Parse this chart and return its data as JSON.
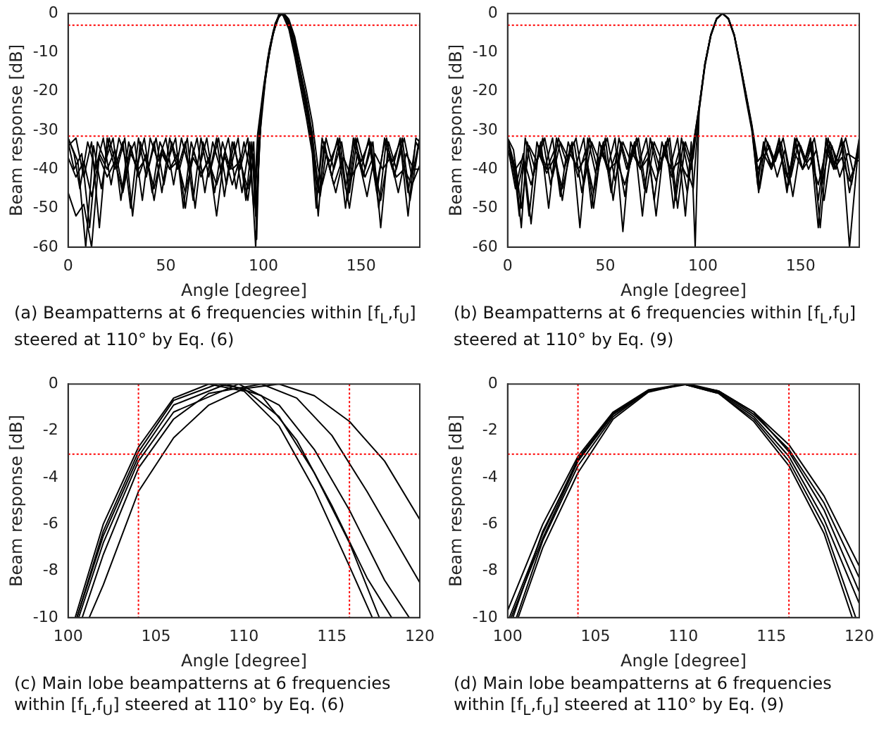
{
  "chart_data": [
    {
      "type": "line",
      "xlabel": "Angle [degree]",
      "ylabel": "Beam response [dB]",
      "xlim": [
        0,
        180
      ],
      "ylim": [
        -60,
        0
      ],
      "xticks": [
        0,
        50,
        100,
        150
      ],
      "yticks": [
        -60,
        -50,
        -40,
        -30,
        -20,
        -10,
        0
      ],
      "grid": false,
      "marker": "none",
      "line_style": "solid",
      "ref_lines": [
        {
          "axis": "y",
          "value": -3,
          "color": "#ff0000",
          "line_style": "dotted"
        },
        {
          "axis": "y",
          "value": -31.5,
          "color": "#ff0000",
          "line_style": "dotted"
        }
      ],
      "annotations": [
        "(a) Beampatterns at 6 frequencies within [f$_{L}$,f$_{U}$] steered at 110° by Eq. (6)"
      ],
      "series": [
        {
          "color": "#000000",
          "x": [
            0,
            3,
            6,
            10,
            14,
            18,
            22,
            26,
            30,
            34,
            38,
            42,
            46,
            50,
            54,
            58,
            62,
            66,
            70,
            74,
            78,
            82,
            86,
            90,
            93,
            95,
            96.5,
            98,
            100,
            103,
            106,
            108,
            110,
            113,
            116,
            119,
            122,
            125,
            127,
            130,
            134,
            138,
            142,
            146,
            150,
            154,
            158,
            162,
            166,
            170,
            174,
            178,
            180
          ],
          "values": [
            -32,
            -36,
            -45,
            -33,
            -40,
            -32,
            -44,
            -32,
            -38,
            -33,
            -48,
            -32,
            -38,
            -32,
            -44,
            -32,
            -40,
            -32,
            -46,
            -33,
            -40,
            -32,
            -45,
            -33,
            -40,
            -33,
            -58,
            -30,
            -20,
            -10,
            -3,
            0,
            -0.5,
            -4,
            -11,
            -19,
            -27,
            -36,
            -50,
            -32,
            -40,
            -32,
            -45,
            -33,
            -40,
            -32,
            -44,
            -33,
            -40,
            -32,
            -46,
            -33,
            -35
          ]
        },
        {
          "color": "#000000",
          "x": [
            0,
            4,
            8,
            12,
            16,
            20,
            24,
            28,
            32,
            36,
            40,
            44,
            48,
            52,
            56,
            60,
            64,
            68,
            72,
            76,
            80,
            84,
            88,
            92,
            95,
            97,
            100,
            103,
            106,
            108.5,
            111,
            114,
            117,
            120,
            123,
            126,
            128,
            131,
            135,
            139,
            143,
            147,
            151,
            155,
            159,
            163,
            167,
            171,
            175,
            180
          ],
          "values": [
            -34,
            -32,
            -42,
            -33,
            -55,
            -32,
            -40,
            -33,
            -50,
            -32,
            -42,
            -33,
            -46,
            -32,
            -40,
            -33,
            -48,
            -32,
            -42,
            -32,
            -47,
            -33,
            -40,
            -32,
            -50,
            -31,
            -19,
            -9,
            -2.5,
            0,
            -0.8,
            -5,
            -12,
            -20,
            -28,
            -38,
            -52,
            -33,
            -42,
            -32,
            -48,
            -32,
            -42,
            -33,
            -50,
            -32,
            -42,
            -32,
            -48,
            -32
          ]
        },
        {
          "color": "#000000",
          "x": [
            0,
            4,
            8,
            12,
            16,
            20,
            24,
            28,
            32,
            36,
            40,
            44,
            48,
            52,
            56,
            60,
            64,
            68,
            72,
            76,
            80,
            84,
            88,
            92,
            95,
            96,
            98,
            101,
            104,
            107,
            109,
            112,
            115,
            118,
            121,
            124,
            127,
            129,
            132,
            136,
            140,
            144,
            148,
            152,
            156,
            160,
            164,
            168,
            172,
            176,
            180
          ],
          "values": [
            -46,
            -52,
            -49,
            -60,
            -36,
            -40,
            -35,
            -45,
            -34,
            -42,
            -36,
            -48,
            -35,
            -40,
            -36,
            -50,
            -35,
            -42,
            -37,
            -52,
            -36,
            -44,
            -37,
            -48,
            -36,
            -45,
            -28,
            -16,
            -7,
            -1.5,
            0,
            -1.2,
            -6,
            -13,
            -21,
            -29,
            -40,
            -47,
            -36,
            -44,
            -38,
            -50,
            -36,
            -42,
            -37,
            -48,
            -36,
            -42,
            -40,
            -44,
            -39
          ]
        },
        {
          "color": "#000000",
          "x": [
            0,
            5,
            9,
            13,
            17,
            21,
            25,
            29,
            33,
            37,
            41,
            45,
            49,
            53,
            57,
            61,
            65,
            69,
            73,
            77,
            81,
            85,
            89,
            93,
            96,
            98,
            101,
            104,
            107,
            109.5,
            112,
            115,
            118,
            121,
            124,
            126.5,
            128.5,
            132,
            136,
            140,
            144,
            148,
            152,
            156,
            160,
            164,
            168,
            172,
            176,
            180
          ],
          "values": [
            -32,
            -38,
            -60,
            -34,
            -45,
            -32,
            -40,
            -32,
            -52,
            -33,
            -40,
            -32,
            -44,
            -33,
            -40,
            -32,
            -50,
            -33,
            -40,
            -32,
            -44,
            -33,
            -46,
            -33,
            -60,
            -32,
            -17,
            -7,
            -1.5,
            0,
            -1,
            -5.5,
            -13,
            -21,
            -30,
            -42,
            -46,
            -32,
            -40,
            -33,
            -46,
            -32,
            -40,
            -33,
            -55,
            -33,
            -40,
            -32,
            -42,
            -32
          ]
        },
        {
          "color": "#000000",
          "x": [
            0,
            3,
            7,
            11,
            15,
            19,
            23,
            27,
            31,
            35,
            39,
            43,
            47,
            51,
            55,
            59,
            63,
            67,
            71,
            75,
            79,
            83,
            87,
            91,
            94,
            96,
            99,
            102,
            105,
            108,
            110,
            113,
            116,
            119,
            122,
            125,
            128,
            130,
            134,
            138,
            142,
            146,
            150,
            154,
            158,
            162,
            166,
            170,
            174,
            178,
            180
          ],
          "values": [
            -33,
            -40,
            -36,
            -55,
            -33,
            -38,
            -32,
            -48,
            -33,
            -40,
            -32,
            -46,
            -33,
            -38,
            -32,
            -50,
            -33,
            -40,
            -32,
            -46,
            -33,
            -40,
            -32,
            -48,
            -33,
            -52,
            -25,
            -13,
            -5,
            -0.7,
            0,
            -2,
            -7,
            -15,
            -22,
            -31,
            -45,
            -34,
            -38,
            -33,
            -50,
            -32,
            -38,
            -33,
            -46,
            -32,
            -38,
            -33,
            -52,
            -32,
            -33
          ]
        },
        {
          "color": "#000000",
          "x": [
            0,
            4,
            8,
            12,
            16,
            20,
            24,
            28,
            32,
            36,
            40,
            44,
            48,
            52,
            56,
            60,
            64,
            68,
            72,
            76,
            80,
            84,
            88,
            92,
            95,
            96.5,
            99,
            102,
            105,
            108,
            110.5,
            113,
            116,
            119,
            122,
            125,
            128,
            130,
            133,
            137,
            141,
            145,
            149,
            153,
            157,
            161,
            165,
            169,
            173,
            177,
            180
          ],
          "values": [
            -37,
            -42,
            -38,
            -47,
            -37,
            -42,
            -38,
            -46,
            -36,
            -40,
            -37,
            -45,
            -36,
            -40,
            -38,
            -46,
            -37,
            -41,
            -38,
            -44,
            -37,
            -40,
            -38,
            -45,
            -37,
            -50,
            -24,
            -12,
            -4.5,
            -0.5,
            0,
            -1.5,
            -6,
            -13,
            -20,
            -28,
            -40,
            -44,
            -38,
            -46,
            -37,
            -42,
            -38,
            -47,
            -36,
            -40,
            -37,
            -46,
            -36,
            -40,
            -40
          ]
        }
      ]
    },
    {
      "type": "line",
      "xlabel": "Angle [degree]",
      "ylabel": "Beam response [dB]",
      "xlim": [
        0,
        180
      ],
      "ylim": [
        -60,
        0
      ],
      "xticks": [
        0,
        50,
        100,
        150
      ],
      "yticks": [
        -60,
        -50,
        -40,
        -30,
        -20,
        -10,
        0
      ],
      "grid": false,
      "marker": "none",
      "line_style": "solid",
      "ref_lines": [
        {
          "axis": "y",
          "value": -3,
          "color": "#ff0000",
          "line_style": "dotted"
        },
        {
          "axis": "y",
          "value": -31.5,
          "color": "#ff0000",
          "line_style": "dotted"
        }
      ],
      "annotations": [
        "(b) Beampatterns at 6 frequencies within [f$_{L}$,f$_{U}$] steered at 110° by Eq. (9)"
      ],
      "series": [
        {
          "color": "#000000",
          "x": [
            0,
            4,
            7,
            10,
            14,
            18,
            22,
            26,
            30,
            34,
            38,
            42,
            46,
            50,
            54,
            58,
            62,
            66,
            70,
            74,
            78,
            82,
            86,
            90,
            94,
            95.5,
            98,
            101,
            104,
            107,
            110,
            113,
            116,
            119,
            122,
            125,
            128,
            131,
            135,
            139,
            143,
            147,
            151,
            155,
            159,
            163,
            167,
            171,
            175,
            180
          ],
          "values": [
            -32,
            -40,
            -55,
            -33,
            -40,
            -32,
            -44,
            -32,
            -38,
            -33,
            -46,
            -32,
            -40,
            -32,
            -48,
            -33,
            -40,
            -32,
            -45,
            -33,
            -40,
            -32,
            -48,
            -33,
            -40,
            -32,
            -24,
            -13,
            -5.5,
            -1.3,
            0,
            -1.3,
            -5.5,
            -13,
            -21,
            -29,
            -44,
            -33,
            -40,
            -32,
            -45,
            -33,
            -40,
            -32,
            -48,
            -33,
            -40,
            -32,
            -46,
            -33
          ]
        },
        {
          "color": "#000000",
          "x": [
            0,
            3,
            6,
            9,
            13,
            17,
            21,
            25,
            29,
            33,
            37,
            41,
            45,
            49,
            53,
            57,
            61,
            65,
            69,
            73,
            77,
            81,
            85,
            89,
            93,
            95,
            98,
            101,
            104,
            107,
            110,
            113,
            116,
            119,
            122,
            125,
            128.5,
            132,
            136,
            140,
            144,
            148,
            152,
            156,
            160,
            164,
            168,
            172,
            176,
            180
          ],
          "values": [
            -33,
            -38,
            -52,
            -32,
            -42,
            -33,
            -50,
            -32,
            -40,
            -33,
            -55,
            -32,
            -41,
            -33,
            -46,
            -32,
            -40,
            -33,
            -52,
            -32,
            -41,
            -33,
            -50,
            -32,
            -42,
            -45,
            -25,
            -13.5,
            -5.8,
            -1.4,
            0,
            -1.4,
            -5.8,
            -13.5,
            -22,
            -30,
            -46,
            -32,
            -38,
            -33,
            -44,
            -32,
            -38,
            -33,
            -55,
            -32,
            -40,
            -33,
            -44,
            -32
          ]
        },
        {
          "color": "#000000",
          "x": [
            0,
            4,
            8,
            12,
            16,
            20,
            24,
            28,
            32,
            36,
            40,
            44,
            48,
            52,
            56,
            60,
            64,
            68,
            72,
            76,
            80,
            84,
            88,
            92,
            95,
            98,
            101,
            104,
            107,
            110,
            113,
            116,
            119,
            122,
            125,
            128,
            130,
            134,
            138,
            142,
            146,
            150,
            154,
            158,
            162,
            166,
            170,
            174,
            180
          ],
          "values": [
            -34,
            -45,
            -36,
            -54,
            -34,
            -40,
            -35,
            -48,
            -34,
            -42,
            -35,
            -50,
            -34,
            -41,
            -35,
            -47,
            -34,
            -40,
            -35,
            -52,
            -34,
            -42,
            -35,
            -46,
            -34,
            -24,
            -13,
            -5.6,
            -1.3,
            0,
            -1.3,
            -5.6,
            -13,
            -21,
            -29,
            -40,
            -38,
            -34,
            -42,
            -35,
            -47,
            -34,
            -40,
            -35,
            -48,
            -34,
            -42,
            -36,
            -38
          ]
        },
        {
          "color": "#000000",
          "x": [
            0,
            5,
            8,
            11,
            15,
            19,
            23,
            27,
            31,
            35,
            39,
            43,
            47,
            51,
            55,
            59,
            63,
            67,
            71,
            75,
            79,
            83,
            87,
            91,
            94,
            96,
            98,
            101,
            104,
            107,
            110,
            113,
            116,
            119,
            122,
            125,
            128,
            131,
            135,
            139,
            143,
            147,
            151,
            155,
            159,
            163,
            167,
            171,
            175,
            180
          ],
          "values": [
            -32,
            -46,
            -38,
            -52,
            -33,
            -40,
            -32,
            -47,
            -33,
            -39,
            -32,
            -50,
            -33,
            -40,
            -32,
            -56,
            -33,
            -39,
            -32,
            -48,
            -33,
            -40,
            -32,
            -52,
            -33,
            -60,
            -25,
            -13.2,
            -5.6,
            -1.3,
            0,
            -1.3,
            -5.6,
            -13.2,
            -21,
            -29.5,
            -42,
            -34,
            -39,
            -33,
            -46,
            -32,
            -40,
            -33,
            -55,
            -32,
            -39,
            -33,
            -60,
            -32
          ]
        },
        {
          "color": "#000000",
          "x": [
            0,
            4,
            8,
            12,
            16,
            20,
            24,
            28,
            32,
            36,
            40,
            44,
            48,
            52,
            56,
            60,
            64,
            68,
            72,
            76,
            80,
            84,
            88,
            92,
            95,
            98,
            101,
            104,
            107,
            110,
            113,
            116,
            119,
            122,
            125,
            128,
            131,
            135,
            139,
            143,
            147,
            151,
            155,
            159,
            163,
            167,
            171,
            175,
            180
          ],
          "values": [
            -35,
            -40,
            -37,
            -44,
            -36,
            -41,
            -37,
            -45,
            -36,
            -40,
            -37,
            -46,
            -36,
            -40,
            -38,
            -44,
            -36,
            -40,
            -37,
            -43,
            -36,
            -40,
            -38,
            -42,
            -37,
            -24,
            -12.8,
            -5.4,
            -1.2,
            0,
            -1.2,
            -5.4,
            -12.8,
            -20.5,
            -28.5,
            -38,
            -36,
            -40,
            -35,
            -42,
            -36,
            -40,
            -37,
            -44,
            -35,
            -40,
            -37,
            -43,
            -36
          ]
        },
        {
          "color": "#000000",
          "x": [
            0,
            3,
            7,
            11,
            15,
            19,
            23,
            27,
            31,
            35,
            39,
            43,
            47,
            51,
            55,
            59,
            63,
            67,
            71,
            75,
            79,
            83,
            87,
            91,
            94,
            98,
            101,
            104,
            107,
            110,
            113,
            116,
            119,
            122,
            125,
            129,
            133,
            137,
            141,
            145,
            149,
            153,
            157,
            161,
            165,
            169,
            173,
            177,
            180
          ],
          "values": [
            -32,
            -35,
            -50,
            -34,
            -38,
            -32,
            -42,
            -33,
            -37,
            -32,
            -44,
            -33,
            -38,
            -32,
            -43,
            -33,
            -38,
            -32,
            -46,
            -33,
            -38,
            -32,
            -50,
            -33,
            -38,
            -24.5,
            -13,
            -5.5,
            -1.3,
            0,
            -1.3,
            -5.5,
            -13,
            -21,
            -29,
            -45,
            -33,
            -38,
            -32,
            -42,
            -33,
            -38,
            -32,
            -44,
            -33,
            -38,
            -32,
            -41,
            -34
          ]
        }
      ]
    },
    {
      "type": "line",
      "xlabel": "Angle [degree]",
      "ylabel": "Beam response [dB]",
      "xlim": [
        100,
        120
      ],
      "ylim": [
        -10,
        0
      ],
      "xticks": [
        100,
        105,
        110,
        115,
        120
      ],
      "yticks": [
        -10,
        -8,
        -6,
        -4,
        -2,
        0
      ],
      "grid": false,
      "marker": "none",
      "line_style": "solid",
      "ref_lines": [
        {
          "axis": "y",
          "value": -3,
          "color": "#ff0000",
          "line_style": "dotted"
        },
        {
          "axis": "x",
          "value": 104,
          "color": "#ff0000",
          "line_style": "dotted"
        },
        {
          "axis": "x",
          "value": 116,
          "color": "#ff0000",
          "line_style": "dotted"
        }
      ],
      "annotations": [
        "(c) Main lobe beampatterns at 6 frequencies within [f$_{L}$,f$_{U}$] steered at 110° by Eq. (6)"
      ],
      "series": [
        {
          "color": "#000000",
          "x": [
            100.4,
            102,
            104,
            106,
            108,
            110,
            112,
            114,
            116,
            117.3
          ],
          "values": [
            -10,
            -6,
            -2.7,
            -0.6,
            0,
            -0.3,
            -1.8,
            -4.5,
            -7.8,
            -10
          ]
        },
        {
          "color": "#000000",
          "x": [
            100.5,
            102,
            104,
            106,
            108.5,
            110,
            112,
            114,
            116,
            117.7
          ],
          "values": [
            -10,
            -6.3,
            -2.9,
            -0.7,
            0,
            -0.2,
            -1.4,
            -3.8,
            -6.8,
            -10
          ]
        },
        {
          "color": "#000000",
          "x": [
            100.5,
            102,
            104,
            106,
            109,
            111,
            113,
            115,
            117,
            118.4
          ],
          "values": [
            -10,
            -6.5,
            -3.1,
            -0.9,
            0,
            -0.5,
            -2.4,
            -5.2,
            -8.3,
            -10
          ]
        },
        {
          "color": "#000000",
          "x": [
            100.6,
            102,
            104,
            106,
            109.7,
            112,
            114,
            116,
            118,
            119.4
          ],
          "values": [
            -10,
            -6.8,
            -3.3,
            -1.2,
            0,
            -0.9,
            -2.8,
            -5.4,
            -8.4,
            -10
          ]
        },
        {
          "color": "#000000",
          "x": [
            100.8,
            102,
            104,
            106,
            108,
            111,
            113,
            115,
            117,
            119,
            120
          ],
          "values": [
            -10,
            -7.3,
            -3.6,
            -1.5,
            -0.4,
            0,
            -0.6,
            -2.2,
            -4.6,
            -7.2,
            -8.5
          ]
        },
        {
          "color": "#000000",
          "x": [
            101.2,
            102,
            104,
            106,
            108,
            110,
            112,
            114,
            116,
            118,
            120
          ],
          "values": [
            -10,
            -8.6,
            -4.6,
            -2.3,
            -0.9,
            -0.2,
            0,
            -0.5,
            -1.6,
            -3.3,
            -5.8
          ]
        }
      ]
    },
    {
      "type": "line",
      "xlabel": "Angle [degree]",
      "ylabel": "Beam response [dB]",
      "xlim": [
        100,
        120
      ],
      "ylim": [
        -10,
        0
      ],
      "xticks": [
        100,
        105,
        110,
        115,
        120
      ],
      "yticks": [
        -10,
        -8,
        -6,
        -4,
        -2,
        0
      ],
      "grid": false,
      "marker": "none",
      "line_style": "solid",
      "ref_lines": [
        {
          "axis": "y",
          "value": -3,
          "color": "#ff0000",
          "line_style": "dotted"
        },
        {
          "axis": "x",
          "value": 104,
          "color": "#ff0000",
          "line_style": "dotted"
        },
        {
          "axis": "x",
          "value": 116,
          "color": "#ff0000",
          "line_style": "dotted"
        }
      ],
      "annotations": [
        "(d) Main lobe beampatterns at 6 frequencies within [f$_{L}$,f$_{U}$] steered at 110° by Eq. (9)"
      ],
      "series": [
        {
          "color": "#000000",
          "x": [
            100,
            102,
            104,
            106,
            108,
            110,
            112,
            114,
            116,
            118,
            120
          ],
          "values": [
            -9.7,
            -6,
            -3.1,
            -1.2,
            -0.25,
            0,
            -0.3,
            -1.2,
            -2.6,
            -4.8,
            -7.8
          ]
        },
        {
          "color": "#000000",
          "x": [
            100.3,
            102,
            104,
            106,
            108,
            110,
            112,
            114,
            116,
            118,
            120
          ],
          "values": [
            -10,
            -6.3,
            -3.3,
            -1.3,
            -0.3,
            0,
            -0.3,
            -1.3,
            -2.8,
            -5.1,
            -8.3
          ]
        },
        {
          "color": "#000000",
          "x": [
            100.6,
            102,
            104,
            106,
            108,
            110,
            112,
            114,
            116,
            118,
            120
          ],
          "values": [
            -10,
            -7,
            -3.8,
            -1.5,
            -0.35,
            0,
            -0.35,
            -1.4,
            -3.1,
            -5.8,
            -9.4
          ]
        },
        {
          "color": "#000000",
          "x": [
            100.5,
            102,
            104,
            106,
            108,
            110.3,
            112,
            114,
            116,
            118,
            120
          ],
          "values": [
            -10,
            -6.7,
            -3.5,
            -1.4,
            -0.3,
            0,
            -0.3,
            -1.2,
            -2.9,
            -5.4,
            -8.9
          ]
        },
        {
          "color": "#000000",
          "x": [
            100.2,
            102,
            104,
            106,
            108,
            110,
            112,
            114,
            116,
            118,
            119.8
          ],
          "values": [
            -10,
            -6.6,
            -3.3,
            -1.3,
            -0.3,
            0,
            -0.4,
            -1.5,
            -3.3,
            -6.1,
            -10
          ]
        },
        {
          "color": "#000000",
          "x": [
            100.1,
            102,
            104,
            106,
            108,
            110,
            112,
            114,
            116,
            118,
            119.6
          ],
          "values": [
            -10,
            -6.4,
            -3.2,
            -1.25,
            -0.3,
            0,
            -0.4,
            -1.6,
            -3.5,
            -6.4,
            -10
          ]
        }
      ]
    }
  ]
}
